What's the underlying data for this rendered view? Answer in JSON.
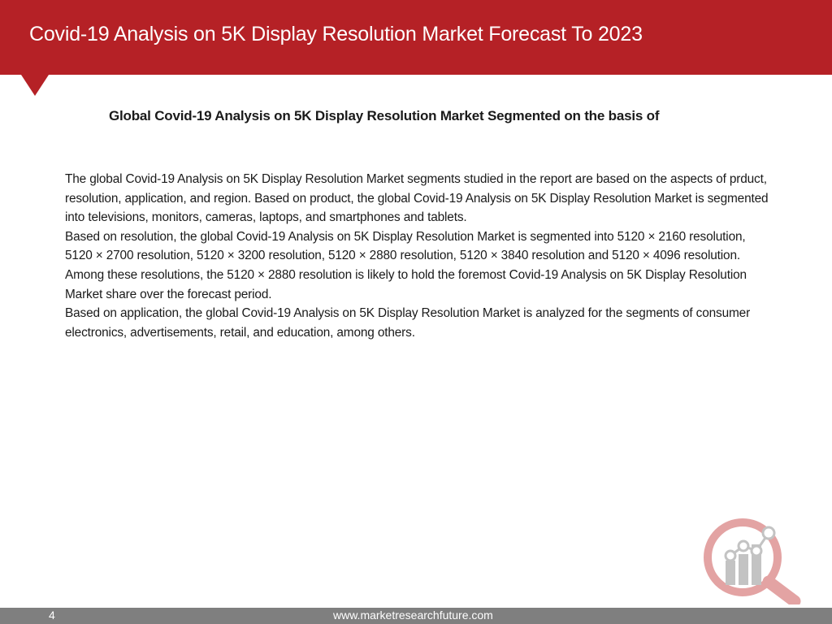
{
  "header": {
    "title": "Covid-19 Analysis on 5K Display Resolution Market  Forecast To 2023"
  },
  "content": {
    "subtitle": "Global Covid-19 Analysis on 5K Display Resolution Market  Segmented on the basis of",
    "paragraphs": [
      "The global Covid-19 Analysis on 5K Display Resolution Market segments studied in the report are based on the aspects of prduct, resolution, application, and region. Based on product, the global Covid-19 Analysis on 5K Display Resolution Market is segmented into televisions, monitors, cameras, laptops, and smartphones and tablets.",
      "Based on resolution, the global Covid-19 Analysis on 5K Display Resolution Market is segmented into 5120 × 2160 resolution, 5120 × 2700 resolution, 5120 × 3200 resolution, 5120 × 2880 resolution, 5120 × 3840 resolution and 5120 × 4096 resolution. Among these resolutions, the 5120 × 2880 resolution is likely to hold the foremost Covid-19 Analysis on 5K Display Resolution Market share over the forecast period.",
      "Based on application, the global Covid-19 Analysis on 5K Display Resolution Market is analyzed for the segments of consumer electronics, advertisements, retail, and education, among others."
    ]
  },
  "logo": {
    "icon": "magnifier-chart-logo-icon",
    "colors": {
      "red": "#e3a3a3",
      "grey": "#c3c3c3"
    }
  },
  "footer": {
    "page_number": "4",
    "website": "www.marketresearchfuture.com"
  },
  "colors": {
    "header_bg": "#b52126",
    "footer_bg": "#7f7f7f"
  }
}
